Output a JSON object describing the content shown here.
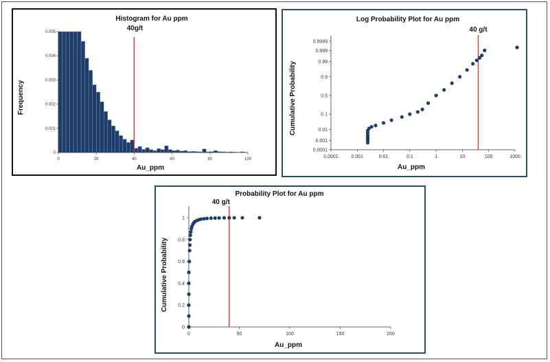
{
  "chart_data": [
    {
      "type": "bar",
      "title": "Histogram for Au ppm",
      "xlabel": "Au_ppm",
      "ylabel": "Frequency",
      "xlim": [
        0,
        100
      ],
      "ylim": [
        0,
        0.005
      ],
      "x_ticks": [
        "0",
        "20",
        "40",
        "60",
        "80",
        "100"
      ],
      "y_ticks": [
        "0",
        "0.001",
        "0.002",
        "0.003",
        "0.004",
        "0.005"
      ],
      "bin_width": 2,
      "bin_starts": [
        0,
        2,
        4,
        6,
        8,
        10,
        12,
        14,
        16,
        18,
        20,
        22,
        24,
        26,
        28,
        30,
        32,
        34,
        36,
        38,
        40,
        42,
        44,
        46,
        48,
        50,
        52,
        54,
        56,
        58,
        60,
        62,
        64,
        66,
        68,
        70,
        72,
        74,
        76,
        78,
        80,
        82,
        84,
        86,
        88,
        90,
        92,
        94,
        96,
        98
      ],
      "values": [
        0.005,
        0.005,
        0.005,
        0.005,
        0.005,
        0.005,
        0.0046,
        0.0039,
        0.0034,
        0.0028,
        0.0025,
        0.0021,
        0.0017,
        0.00135,
        0.0011,
        0.0009,
        0.0007,
        0.00055,
        0.00042,
        0.00052,
        0.00018,
        0.00025,
        0.00013,
        0.0002,
        0.00012,
        8e-05,
        0.00016,
        0.00012,
        0.00028,
        0.00012,
        8e-05,
        0.0001,
        6e-05,
        8e-05,
        4e-05,
        5e-05,
        4e-05,
        3e-05,
        0.00015,
        3e-05,
        4e-05,
        8e-05,
        4e-05,
        3e-05,
        2e-05,
        3e-05,
        2e-05,
        1e-05,
        3e-05,
        1e-05
      ],
      "bar_color": "#1f3d6b",
      "reference_line": {
        "x": 40,
        "label": "40g/t",
        "color": "#e0342e"
      }
    },
    {
      "type": "scatter",
      "title": "Log Probability Plot for Au ppm",
      "xlabel": "Au_ppm",
      "ylabel": "Cumulative Probability",
      "x_scale": "log",
      "y_scale": "probability",
      "xlim": [
        0.0001,
        1000
      ],
      "x_ticks": [
        "0.0001",
        "0.001",
        "0.01",
        "0.1",
        "1",
        "10",
        "100",
        "1000"
      ],
      "y_ticks": [
        "0.0001",
        "0.001",
        "0.01",
        "0.1",
        "0.5",
        "0.9",
        "0.99",
        "0.999",
        "0.9999"
      ],
      "y_tick_labels": [
        "0.0001",
        "0.001",
        "0.01",
        "0.1",
        "0.5",
        "0.9",
        "0.99",
        "0.999",
        "0.9999"
      ],
      "x": [
        0.0025,
        0.0025,
        0.0025,
        0.0025,
        0.0025,
        0.0025,
        0.0025,
        0.0028,
        0.0035,
        0.005,
        0.01,
        0.02,
        0.05,
        0.1,
        0.2,
        0.3,
        0.5,
        1,
        2,
        4,
        8,
        15,
        25,
        35,
        45,
        55,
        70,
        1200
      ],
      "y": [
        0.0006,
        0.001,
        0.0015,
        0.002,
        0.003,
        0.005,
        0.008,
        0.012,
        0.016,
        0.02,
        0.03,
        0.045,
        0.07,
        0.1,
        0.13,
        0.17,
        0.3,
        0.5,
        0.65,
        0.8,
        0.9,
        0.96,
        0.985,
        0.992,
        0.995,
        0.997,
        0.999,
        0.9995
      ],
      "point_color": "#1f3d6b",
      "reference_line": {
        "x": 40,
        "label": "40 g/t",
        "color": "#e0342e"
      }
    },
    {
      "type": "scatter",
      "title": "Probability Plot for Au ppm",
      "xlabel": "Au_ppm",
      "ylabel": "Cumulative Probability",
      "xlim": [
        0,
        200
      ],
      "ylim": [
        0,
        1
      ],
      "x_ticks": [
        "0",
        "50",
        "100",
        "150",
        "200"
      ],
      "y_ticks": [
        "0",
        "0.2",
        "0.4",
        "0.6",
        "0.8",
        "1"
      ],
      "x": [
        0,
        0,
        0,
        0,
        0,
        0,
        0.5,
        0.8,
        1,
        1.2,
        1.5,
        2,
        2.5,
        3,
        4,
        5,
        6,
        8,
        10,
        12,
        15,
        18,
        22,
        26,
        30,
        35,
        40,
        45,
        53,
        70
      ],
      "y": [
        0,
        0.1,
        0.2,
        0.3,
        0.4,
        0.5,
        0.6,
        0.7,
        0.75,
        0.8,
        0.84,
        0.87,
        0.9,
        0.92,
        0.94,
        0.955,
        0.965,
        0.975,
        0.982,
        0.987,
        0.991,
        0.994,
        0.996,
        0.997,
        0.998,
        0.999,
        0.9993,
        0.9995,
        0.9997,
        0.9999
      ],
      "point_color": "#1f3d6b",
      "reference_line": {
        "x": 40,
        "label": "40 g/t",
        "color": "#e0342e"
      }
    }
  ]
}
